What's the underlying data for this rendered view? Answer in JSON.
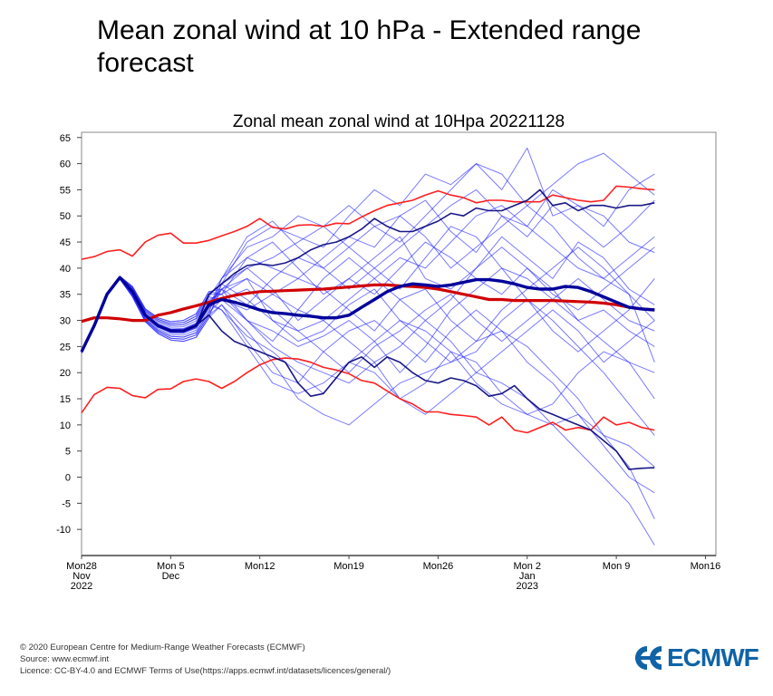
{
  "page": {
    "title": "Mean zonal wind at 10 hPa - Extended range forecast"
  },
  "footer": {
    "copyright": "© 2020 European Centre for Medium-Range Weather Forecasts (ECMWF)",
    "source": "Source: www.ecmwf.int",
    "licence": "Licence: CC-BY-4.0 and ECMWF Terms of Use(https://apps.ecmwf.int/datasets/licences/general/)",
    "logo_text": "ECMWF"
  },
  "colors": {
    "members": "#2020ff",
    "dark": "#00007a",
    "climate": "#ff2020",
    "logo": "#0f63a6"
  },
  "chart_data": {
    "type": "line",
    "title": "Zonal mean zonal wind at 10Hpa 20221128",
    "xlabel": "",
    "ylabel": "",
    "ylim": [
      -15,
      66
    ],
    "xlim_days": [
      0,
      50
    ],
    "yticks": [
      65,
      60,
      55,
      50,
      45,
      40,
      35,
      30,
      25,
      20,
      15,
      10,
      5,
      0,
      -5,
      -10
    ],
    "xticks": [
      {
        "day": 0,
        "lines": [
          "Mon28",
          "Nov",
          "2022"
        ]
      },
      {
        "day": 7,
        "lines": [
          "Mon 5",
          "Dec"
        ]
      },
      {
        "day": 14,
        "lines": [
          "Mon12"
        ]
      },
      {
        "day": 21,
        "lines": [
          "Mon19"
        ]
      },
      {
        "day": 28,
        "lines": [
          "Mon26"
        ]
      },
      {
        "day": 35,
        "lines": [
          "Mon 2",
          "Jan",
          "2023"
        ]
      },
      {
        "day": 42,
        "lines": [
          "Mon 9"
        ]
      },
      {
        "day": 49,
        "lines": [
          "Mon16"
        ]
      }
    ],
    "climate_max": [
      41.7,
      42.2,
      43.2,
      43.5,
      42.3,
      45,
      46.3,
      46.7,
      44.8,
      44.8,
      45.3,
      46.2,
      47,
      48,
      49.5,
      47.8,
      47.5,
      48.2,
      48.3,
      48,
      48.6,
      48.5,
      49.8,
      51,
      52,
      52.5,
      53,
      54,
      54.8,
      54,
      53.5,
      52.5,
      53,
      53,
      52.7,
      52.7,
      52.7,
      54,
      53.5,
      53,
      52.7,
      53,
      55.7,
      55.5,
      55.2,
      55
    ],
    "climate_mean": [
      29.8,
      30.5,
      30.5,
      30.3,
      30,
      30,
      31,
      31.5,
      32.2,
      32.8,
      33.5,
      34.2,
      34.8,
      35.2,
      35.5,
      35.6,
      35.7,
      35.8,
      35.9,
      36,
      36.2,
      36.4,
      36.6,
      36.8,
      36.8,
      36.6,
      36.5,
      36.3,
      36,
      35.5,
      35,
      34.5,
      34,
      34,
      33.8,
      33.8,
      33.8,
      33.8,
      33.7,
      33.6,
      33.5,
      33.3,
      33,
      32.5,
      32.2,
      32
    ],
    "climate_min": [
      12.3,
      15.8,
      17.2,
      17,
      15.6,
      15.2,
      16.8,
      16.9,
      18.3,
      18.8,
      18.3,
      17,
      18.3,
      20,
      21.5,
      22.5,
      22.8,
      22.6,
      22,
      21,
      20.5,
      19.8,
      18.5,
      18,
      16.5,
      15,
      14,
      12.5,
      12.5,
      12,
      11.8,
      11.5,
      10,
      11.5,
      9,
      8.5,
      9.5,
      10.5,
      9,
      9.5,
      9,
      11.5,
      10,
      10.5,
      9.5,
      9
    ],
    "ensemble_mean": [
      24,
      29,
      35,
      38.2,
      35.5,
      31,
      29,
      28,
      28,
      29,
      33,
      34,
      33.5,
      32.8,
      32,
      31.5,
      31.3,
      31,
      30.8,
      30.5,
      30.5,
      31,
      32.5,
      34,
      35.5,
      36.5,
      37,
      36.8,
      36.5,
      36.8,
      37.3,
      37.8,
      37.8,
      37.5,
      37,
      36.3,
      36,
      36,
      36.5,
      36.3,
      35.5,
      34.5,
      33.5,
      32.5,
      32.2,
      32
    ],
    "highlight_members": [
      [
        24,
        29,
        35,
        38.2,
        35.5,
        31,
        29,
        28,
        28,
        29,
        35,
        37,
        39,
        40.5,
        40.8,
        40.5,
        41,
        42,
        43.5,
        44.5,
        45,
        46,
        47.5,
        49.5,
        48,
        47,
        47,
        48,
        49,
        50.5,
        50,
        51.5,
        51,
        51,
        52,
        53,
        55,
        52,
        52.5,
        51,
        52,
        52,
        51.5,
        52,
        52,
        52.5
      ],
      [
        24,
        29,
        35,
        38.2,
        35.5,
        31,
        29,
        28,
        28,
        29,
        31,
        28,
        26,
        25,
        24,
        23,
        22,
        18,
        15.5,
        16,
        19,
        22,
        23,
        21,
        23,
        22,
        20,
        18.5,
        18,
        19,
        18.5,
        17.5,
        15.5,
        16,
        17.5,
        15,
        13,
        12,
        11,
        10,
        9,
        7,
        5,
        1.5,
        1.7,
        1.8
      ]
    ],
    "member_start_day": 11,
    "member_step_days": 2,
    "members": [
      [
        37,
        45,
        48,
        46,
        44,
        50,
        55,
        52,
        58,
        56,
        60,
        55,
        63,
        50,
        52,
        48,
        55,
        58
      ],
      [
        34,
        30,
        25,
        22,
        20,
        18,
        22,
        15,
        12,
        16,
        20,
        18,
        15,
        10,
        5,
        0,
        -5,
        -13
      ],
      [
        38,
        42,
        40,
        38,
        42,
        46,
        44,
        50,
        53,
        47,
        43,
        50,
        48,
        55,
        52,
        50,
        45,
        43
      ],
      [
        33,
        28,
        22,
        15,
        12,
        10,
        14,
        18,
        20,
        22,
        26,
        28,
        25,
        20,
        15,
        8,
        2,
        -8
      ],
      [
        36,
        38,
        35,
        32,
        30,
        34,
        38,
        42,
        40,
        45,
        50,
        52,
        48,
        44,
        40,
        38,
        42,
        46
      ],
      [
        35,
        30,
        28,
        25,
        27,
        30,
        26,
        20,
        25,
        32,
        36,
        40,
        38,
        34,
        30,
        26,
        22,
        15
      ],
      [
        38,
        44,
        46,
        50,
        48,
        52,
        48,
        45,
        50,
        55,
        60,
        58,
        52,
        56,
        60,
        62,
        58,
        54
      ],
      [
        32,
        27,
        24,
        20,
        16,
        22,
        26,
        30,
        28,
        24,
        18,
        14,
        12,
        10,
        12,
        8,
        6,
        2
      ],
      [
        36,
        40,
        36,
        30,
        34,
        38,
        35,
        40,
        45,
        42,
        38,
        35,
        40,
        36,
        30,
        32,
        28,
        25
      ],
      [
        37,
        34,
        30,
        28,
        24,
        20,
        25,
        28,
        32,
        35,
        30,
        26,
        30,
        34,
        38,
        34,
        30,
        28
      ],
      [
        35,
        42,
        45,
        40,
        35,
        38,
        42,
        46,
        38,
        36,
        40,
        46,
        42,
        38,
        45,
        42,
        36,
        33
      ],
      [
        33,
        26,
        20,
        18,
        24,
        28,
        30,
        26,
        22,
        28,
        32,
        28,
        22,
        18,
        12,
        6,
        0,
        -3
      ],
      [
        38,
        46,
        49,
        44,
        40,
        36,
        40,
        44,
        48,
        52,
        55,
        50,
        46,
        52,
        48,
        44,
        48,
        53
      ],
      [
        34,
        32,
        35,
        38,
        36,
        32,
        28,
        34,
        36,
        30,
        26,
        32,
        36,
        40,
        44,
        40,
        35,
        30
      ],
      [
        36,
        30,
        26,
        32,
        38,
        42,
        38,
        34,
        30,
        34,
        40,
        44,
        40,
        35,
        32,
        36,
        40,
        44
      ],
      [
        32,
        25,
        18,
        16,
        18,
        22,
        20,
        15,
        18,
        24,
        22,
        16,
        12,
        14,
        20,
        24,
        22,
        20
      ],
      [
        37,
        40,
        42,
        45,
        48,
        44,
        40,
        36,
        42,
        48,
        46,
        40,
        34,
        28,
        24,
        28,
        32,
        38
      ],
      [
        34,
        36,
        32,
        28,
        30,
        26,
        22,
        25,
        30,
        26,
        20,
        24,
        28,
        32,
        28,
        22,
        26,
        30
      ],
      [
        36,
        33,
        38,
        42,
        40,
        44,
        48,
        50,
        46,
        40,
        44,
        48,
        52,
        48,
        42,
        38,
        35,
        22
      ],
      [
        35,
        38,
        30,
        26,
        28,
        33,
        36,
        30,
        26,
        22,
        24,
        30,
        34,
        30,
        25,
        20,
        14,
        8
      ]
    ]
  }
}
